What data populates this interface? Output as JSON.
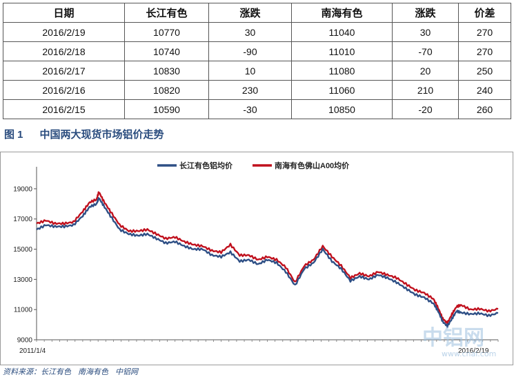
{
  "table": {
    "headers": [
      "日期",
      "长江有色",
      "涨跌",
      "南海有色",
      "涨跌",
      "价差"
    ],
    "rows": [
      [
        "2016/2/19",
        "10770",
        "30",
        "11040",
        "30",
        "270"
      ],
      [
        "2016/2/18",
        "10740",
        "-90",
        "11010",
        "-70",
        "270"
      ],
      [
        "2016/2/17",
        "10830",
        "10",
        "11080",
        "20",
        "250"
      ],
      [
        "2016/2/16",
        "10820",
        "230",
        "11060",
        "210",
        "240"
      ],
      [
        "2016/2/15",
        "10590",
        "-30",
        "10850",
        "-20",
        "260"
      ]
    ]
  },
  "figure": {
    "number": "图 1",
    "title": "中国两大现货市场铝价走势"
  },
  "colors": {
    "series_changjiang": "#2e4f85",
    "series_nanhai": "#c0101d",
    "caption": "#2a4c7e"
  },
  "chart_data": {
    "type": "line",
    "xlabel_start": "2011/1/4",
    "xlabel_end": "2016/2/19",
    "ylim": [
      9000,
      20000
    ],
    "yticks": [
      9000,
      11000,
      13000,
      15000,
      17000,
      19000
    ],
    "ytick_labels": [
      "9000",
      "11000",
      "13000",
      "15000",
      "17000",
      "19000"
    ],
    "x": [
      0.0,
      0.02,
      0.04,
      0.06,
      0.08,
      0.1,
      0.115,
      0.13,
      0.135,
      0.145,
      0.16,
      0.18,
      0.2,
      0.22,
      0.24,
      0.26,
      0.28,
      0.3,
      0.32,
      0.34,
      0.36,
      0.38,
      0.4,
      0.42,
      0.44,
      0.46,
      0.48,
      0.5,
      0.52,
      0.54,
      0.56,
      0.58,
      0.6,
      0.62,
      0.64,
      0.66,
      0.68,
      0.7,
      0.72,
      0.74,
      0.76,
      0.78,
      0.8,
      0.82,
      0.84,
      0.86,
      0.87,
      0.88,
      0.89,
      0.9,
      0.91,
      0.92,
      0.94,
      0.96,
      0.98,
      1.0
    ],
    "series": [
      {
        "name": "长江有色铝均价",
        "values": [
          16300,
          16600,
          16500,
          16500,
          16600,
          17200,
          17800,
          18000,
          18400,
          17900,
          17200,
          16300,
          16000,
          15900,
          16000,
          15700,
          15400,
          15500,
          15200,
          15000,
          15000,
          14600,
          14500,
          14800,
          14200,
          14300,
          14000,
          14300,
          14100,
          13500,
          12600,
          13700,
          14100,
          15000,
          14200,
          13700,
          12900,
          13200,
          13000,
          13300,
          13100,
          12800,
          12400,
          12000,
          11800,
          11400,
          10900,
          10200,
          9900,
          10400,
          10900,
          10800,
          10700,
          10750,
          10600,
          10770
        ]
      },
      {
        "name": "南海有色佛山A00均价",
        "values": [
          16700,
          16900,
          16700,
          16700,
          16800,
          17500,
          18100,
          18300,
          18800,
          18200,
          17500,
          16600,
          16200,
          16200,
          16300,
          16000,
          15700,
          15800,
          15500,
          15300,
          15200,
          14900,
          14800,
          15300,
          14600,
          14600,
          14300,
          14500,
          14300,
          13800,
          12800,
          13900,
          14300,
          15200,
          14500,
          13900,
          13100,
          13400,
          13200,
          13500,
          13300,
          13100,
          12700,
          12300,
          12100,
          11700,
          11100,
          10400,
          10100,
          10700,
          11200,
          11300,
          11000,
          11050,
          10900,
          11040
        ]
      }
    ]
  },
  "watermark": {
    "cn": "中铝网",
    "en": "www.cnal.com"
  },
  "source": {
    "label": "资料来源：",
    "items": [
      "长江有色",
      "南海有色",
      "中铝网"
    ]
  }
}
